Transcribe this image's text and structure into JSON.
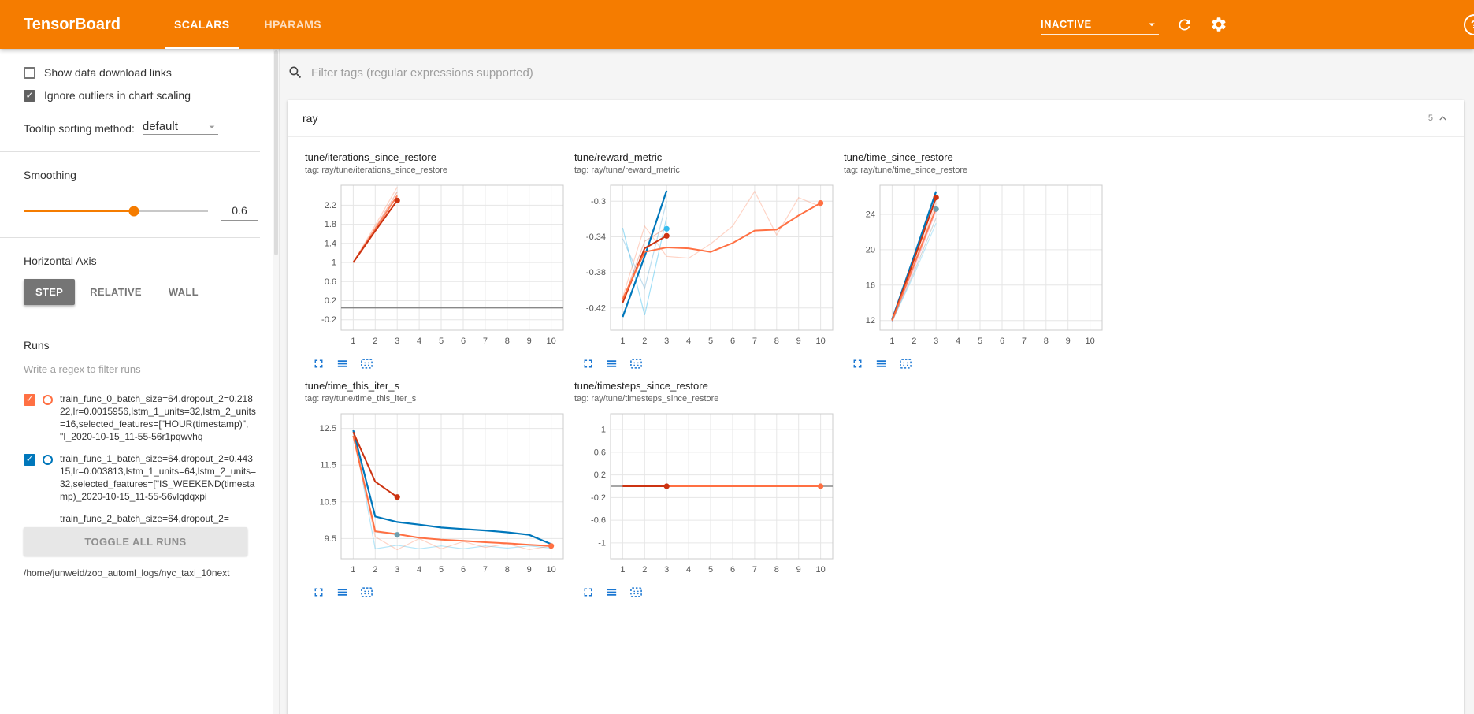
{
  "header": {
    "title": "TensorBoard",
    "tabs": [
      {
        "label": "SCALARS",
        "active": true
      },
      {
        "label": "HPARAMS",
        "active": false
      }
    ],
    "status": "INACTIVE"
  },
  "icons": {
    "search": "magnifier",
    "reload": "circular-arrow",
    "settings": "gear",
    "help": "question-circle",
    "collapse": "chevron-up",
    "dropdown": "caret-down",
    "expand_chart": "fullscreen-corners",
    "runs_toggle": "stacked-bars",
    "fit_domain": "dashed-box-with-dots"
  },
  "colors": {
    "brand_orange": "#f57c00",
    "run_orange": "#ff7043",
    "run_blue": "#0077bb",
    "run_red": "#cc3311",
    "run_cyan": "#33bbee",
    "run_gray": "#bbbbbb",
    "chart_icon_blue": "#1976d2"
  },
  "sidebar": {
    "show_download": {
      "label": "Show data download links",
      "checked": false
    },
    "ignore_outliers": {
      "label": "Ignore outliers in chart scaling",
      "checked": true
    },
    "tooltip_sort": {
      "label": "Tooltip sorting method:",
      "value": "default"
    },
    "smoothing": {
      "label": "Smoothing",
      "value": "0.6",
      "percent": 60
    },
    "haxis": {
      "label": "Horizontal Axis",
      "options": [
        "STEP",
        "RELATIVE",
        "WALL"
      ],
      "selected": "STEP"
    },
    "runs": {
      "label": "Runs",
      "filter_placeholder": "Write a regex to filter runs",
      "toggle_all_label": "TOGGLE ALL RUNS",
      "logdir": "/home/junweid/zoo_automl_logs/nyc_taxi_10next",
      "items": [
        {
          "label": "train_func_0_batch_size=64,dropout_2=0.21822,lr=0.0015956,lstm_1_units=32,lstm_2_units=16,selected_features=[\"HOUR(timestamp)\", \"I_2020-10-15_11-55-56r1pqwvhq",
          "checked": true,
          "color": "#ff7043",
          "truncated": false
        },
        {
          "label": "train_func_1_batch_size=64,dropout_2=0.44315,lr=0.003813,lstm_1_units=64,lstm_2_units=32,selected_features=[\"IS_WEEKEND(timestamp)_2020-10-15_11-55-56vlqdqxpi",
          "checked": true,
          "color": "#0077bb",
          "truncated": false
        },
        {
          "label": "train_func_2_batch_size=64,dropout_2=",
          "checked": false,
          "color": "#cc3311",
          "truncated": true
        }
      ]
    }
  },
  "main": {
    "filter_placeholder": "Filter tags (regular expressions supported)",
    "group": {
      "title": "ray",
      "count": "5"
    }
  },
  "chart_data": [
    {
      "type": "line",
      "title": "tune/iterations_since_restore",
      "tag": "tag: ray/tune/iterations_since_restore",
      "xlim": [
        0.45,
        10.55
      ],
      "ylim": [
        -0.42,
        2.62
      ],
      "xticks": [
        1,
        2,
        3,
        4,
        5,
        6,
        7,
        8,
        9,
        10
      ],
      "yticks": [
        -0.2,
        0.2,
        0.6,
        1,
        1.4,
        1.8,
        2.2
      ],
      "series": [
        {
          "name": "run0 raw",
          "color": "#ff7043",
          "opacity": 0.3,
          "width": 1.2,
          "points": [
            [
              1,
              1
            ],
            [
              2,
              1.78
            ],
            [
              3,
              2.58
            ]
          ]
        },
        {
          "name": "run2 raw",
          "color": "#cc3311",
          "opacity": 0.3,
          "width": 1.2,
          "points": [
            [
              1,
              1
            ],
            [
              2,
              1.73
            ],
            [
              3,
              2.48
            ]
          ]
        },
        {
          "name": "run0 smoothed",
          "color": "#ff7043",
          "opacity": 0.85,
          "width": 2,
          "points": [
            [
              1,
              1
            ],
            [
              2,
              1.7
            ],
            [
              3,
              2.4
            ]
          ]
        },
        {
          "name": "run2 smoothed",
          "color": "#cc3311",
          "opacity": 1,
          "width": 2,
          "points": [
            [
              1,
              1
            ],
            [
              2,
              1.66
            ],
            [
              3,
              2.3
            ]
          ]
        },
        {
          "name": "flat gray run",
          "color": "#888888",
          "opacity": 1,
          "width": 1.6,
          "points": [
            [
              0.45,
              0.05
            ],
            [
              10.55,
              0.05
            ]
          ]
        }
      ],
      "dots": [
        {
          "x": 3,
          "y": 2.3,
          "color": "#cc3311"
        }
      ]
    },
    {
      "type": "line",
      "title": "tune/reward_metric",
      "tag": "tag: ray/tune/reward_metric",
      "xlim": [
        0.45,
        10.55
      ],
      "ylim": [
        -0.445,
        -0.282
      ],
      "xticks": [
        1,
        2,
        3,
        4,
        5,
        6,
        7,
        8,
        9,
        10
      ],
      "yticks": [
        -0.42,
        -0.38,
        -0.34,
        -0.3
      ],
      "series": [
        {
          "name": "run3 raw",
          "color": "#33bbee",
          "opacity": 0.45,
          "width": 1.2,
          "points": [
            [
              1,
              -0.33
            ],
            [
              2,
              -0.428
            ],
            [
              3,
              -0.318
            ]
          ]
        },
        {
          "name": "run1 raw",
          "color": "#0077bb",
          "opacity": 0.25,
          "width": 1.2,
          "points": [
            [
              1,
              -0.342
            ],
            [
              2,
              -0.398
            ],
            [
              3,
              -0.3
            ]
          ]
        },
        {
          "name": "run0 raw",
          "color": "#ff7043",
          "opacity": 0.3,
          "width": 1.2,
          "points": [
            [
              1,
              -0.408
            ],
            [
              2,
              -0.328
            ],
            [
              3,
              -0.362
            ],
            [
              4,
              -0.364
            ],
            [
              5,
              -0.348
            ],
            [
              6,
              -0.328
            ],
            [
              7,
              -0.289
            ],
            [
              8,
              -0.338
            ],
            [
              9,
              -0.296
            ],
            [
              10,
              -0.306
            ]
          ]
        },
        {
          "name": "run2 raw",
          "color": "#cc3311",
          "opacity": 0.3,
          "width": 1.2,
          "points": [
            [
              1,
              -0.412
            ],
            [
              2,
              -0.345
            ],
            [
              3,
              -0.33
            ]
          ]
        },
        {
          "name": "run1 smoothed",
          "color": "#0077bb",
          "opacity": 1,
          "width": 2.2,
          "points": [
            [
              1,
              -0.43
            ],
            [
              2,
              -0.362
            ],
            [
              3,
              -0.288
            ]
          ]
        },
        {
          "name": "run2 smoothed",
          "color": "#cc3311",
          "opacity": 1,
          "width": 2,
          "points": [
            [
              1,
              -0.414
            ],
            [
              2,
              -0.353
            ],
            [
              3,
              -0.339
            ]
          ]
        },
        {
          "name": "run0 smoothed",
          "color": "#ff7043",
          "opacity": 1,
          "width": 2,
          "points": [
            [
              1,
              -0.41
            ],
            [
              2,
              -0.357
            ],
            [
              3,
              -0.352
            ],
            [
              4,
              -0.353
            ],
            [
              5,
              -0.357
            ],
            [
              6,
              -0.347
            ],
            [
              7,
              -0.333
            ],
            [
              8,
              -0.332
            ],
            [
              9,
              -0.316
            ],
            [
              10,
              -0.302
            ]
          ]
        }
      ],
      "dots": [
        {
          "x": 3,
          "y": -0.331,
          "color": "#33bbee"
        },
        {
          "x": 3,
          "y": -0.339,
          "color": "#cc3311"
        },
        {
          "x": 10,
          "y": -0.302,
          "color": "#ff7043"
        }
      ]
    },
    {
      "type": "line",
      "title": "tune/time_since_restore",
      "tag": "tag: ray/tune/time_since_restore",
      "xlim": [
        0.45,
        10.55
      ],
      "ylim": [
        10.9,
        27.3
      ],
      "xticks": [
        1,
        2,
        3,
        4,
        5,
        6,
        7,
        8,
        9,
        10
      ],
      "yticks": [
        12,
        16,
        20,
        24
      ],
      "series": [
        {
          "name": "gray raw",
          "color": "#bbbbbb",
          "opacity": 0.6,
          "width": 1.2,
          "points": [
            [
              1,
              11.9
            ],
            [
              2,
              17.5
            ],
            [
              3,
              23.6
            ]
          ]
        },
        {
          "name": "magenta raw",
          "color": "#ee3377",
          "opacity": 0.25,
          "width": 1.2,
          "points": [
            [
              1,
              11.9
            ],
            [
              2,
              17.9
            ],
            [
              3,
              24.4
            ]
          ]
        },
        {
          "name": "cyan raw",
          "color": "#33bbee",
          "opacity": 0.3,
          "width": 1.2,
          "points": [
            [
              1,
              11.9
            ],
            [
              2,
              17.2
            ],
            [
              3,
              23.0
            ]
          ]
        },
        {
          "name": "orange raw",
          "color": "#ff7043",
          "opacity": 0.3,
          "width": 1.2,
          "points": [
            [
              1,
              12.0
            ],
            [
              2,
              18.4
            ],
            [
              3,
              25.3
            ]
          ]
        },
        {
          "name": "blue smoothed",
          "color": "#0077bb",
          "opacity": 1,
          "width": 2.2,
          "points": [
            [
              1,
              12.1
            ],
            [
              2,
              19.3
            ],
            [
              3,
              26.6
            ]
          ]
        },
        {
          "name": "red smoothed",
          "color": "#cc3311",
          "opacity": 1,
          "width": 2,
          "points": [
            [
              1,
              12.05
            ],
            [
              2,
              18.9
            ],
            [
              3,
              25.9
            ]
          ]
        },
        {
          "name": "orange smoothed",
          "color": "#ff7043",
          "opacity": 0.9,
          "width": 2,
          "points": [
            [
              1,
              12.0
            ],
            [
              2,
              18.3
            ],
            [
              3,
              24.7
            ]
          ]
        }
      ],
      "dots": [
        {
          "x": 3,
          "y": 25.9,
          "color": "#cc3311"
        },
        {
          "x": 3,
          "y": 24.6,
          "color": "#6d9eae"
        }
      ]
    },
    {
      "type": "line",
      "title": "tune/time_this_iter_s",
      "tag": "tag: ray/tune/time_this_iter_s",
      "xlim": [
        0.45,
        10.55
      ],
      "ylim": [
        8.95,
        12.9
      ],
      "xticks": [
        1,
        2,
        3,
        4,
        5,
        6,
        7,
        8,
        9,
        10
      ],
      "yticks": [
        9.5,
        10.5,
        11.5,
        12.5
      ],
      "series": [
        {
          "name": "cyan raw",
          "color": "#33bbee",
          "opacity": 0.35,
          "width": 1.2,
          "points": [
            [
              1,
              12.45
            ],
            [
              2,
              9.22
            ],
            [
              3,
              9.32
            ],
            [
              4,
              9.22
            ],
            [
              5,
              9.3
            ],
            [
              6,
              9.22
            ],
            [
              7,
              9.3
            ],
            [
              8,
              9.24
            ],
            [
              9,
              9.3
            ],
            [
              10,
              9.24
            ]
          ]
        },
        {
          "name": "orange raw",
          "color": "#ff7043",
          "opacity": 0.3,
          "width": 1.2,
          "points": [
            [
              1,
              12.3
            ],
            [
              2,
              9.55
            ],
            [
              3,
              9.2
            ],
            [
              4,
              9.5
            ],
            [
              5,
              9.22
            ],
            [
              6,
              9.42
            ],
            [
              7,
              9.26
            ],
            [
              8,
              9.36
            ],
            [
              9,
              9.2
            ],
            [
              10,
              9.3
            ]
          ]
        },
        {
          "name": "gray raw",
          "color": "#bbbbbb",
          "opacity": 0.7,
          "width": 1.2,
          "points": [
            [
              1,
              12.4
            ],
            [
              2,
              9.68
            ],
            [
              3,
              9.6
            ]
          ]
        },
        {
          "name": "blue smoothed",
          "color": "#0077bb",
          "opacity": 1,
          "width": 2.2,
          "points": [
            [
              1,
              12.45
            ],
            [
              2,
              10.1
            ],
            [
              3,
              9.95
            ],
            [
              4,
              9.88
            ],
            [
              5,
              9.8
            ],
            [
              6,
              9.76
            ],
            [
              7,
              9.72
            ],
            [
              8,
              9.67
            ],
            [
              9,
              9.6
            ],
            [
              10,
              9.35
            ]
          ]
        },
        {
          "name": "red smoothed",
          "color": "#cc3311",
          "opacity": 1,
          "width": 2,
          "points": [
            [
              1,
              12.4
            ],
            [
              2,
              11.05
            ],
            [
              3,
              10.63
            ]
          ]
        },
        {
          "name": "orange smoothed",
          "color": "#ff7043",
          "opacity": 1,
          "width": 2,
          "points": [
            [
              1,
              12.3
            ],
            [
              2,
              9.7
            ],
            [
              3,
              9.62
            ],
            [
              4,
              9.52
            ],
            [
              5,
              9.47
            ],
            [
              6,
              9.44
            ],
            [
              7,
              9.4
            ],
            [
              8,
              9.37
            ],
            [
              9,
              9.33
            ],
            [
              10,
              9.3
            ]
          ]
        }
      ],
      "dots": [
        {
          "x": 3,
          "y": 10.63,
          "color": "#cc3311"
        },
        {
          "x": 3,
          "y": 9.6,
          "color": "#6d9eae"
        },
        {
          "x": 10,
          "y": 9.3,
          "color": "#ff7043"
        }
      ]
    },
    {
      "type": "line",
      "title": "tune/timesteps_since_restore",
      "tag": "tag: ray/tune/timesteps_since_restore",
      "xlim": [
        0.45,
        10.55
      ],
      "ylim": [
        -1.28,
        1.28
      ],
      "xticks": [
        1,
        2,
        3,
        4,
        5,
        6,
        7,
        8,
        9,
        10
      ],
      "yticks": [
        -1,
        -0.6,
        -0.2,
        0.2,
        0.6,
        1
      ],
      "series": [
        {
          "name": "flat gray run",
          "color": "#888888",
          "opacity": 1,
          "width": 1.6,
          "points": [
            [
              0.45,
              0
            ],
            [
              10.55,
              0
            ]
          ]
        },
        {
          "name": "orange smoothed",
          "color": "#ff7043",
          "opacity": 1,
          "width": 2,
          "points": [
            [
              1,
              0
            ],
            [
              10,
              0
            ]
          ]
        },
        {
          "name": "red smoothed",
          "color": "#cc3311",
          "opacity": 1,
          "width": 2,
          "points": [
            [
              1,
              0
            ],
            [
              3,
              0
            ]
          ]
        }
      ],
      "dots": [
        {
          "x": 3,
          "y": 0,
          "color": "#cc3311"
        },
        {
          "x": 10,
          "y": 0,
          "color": "#ff7043"
        }
      ]
    }
  ]
}
